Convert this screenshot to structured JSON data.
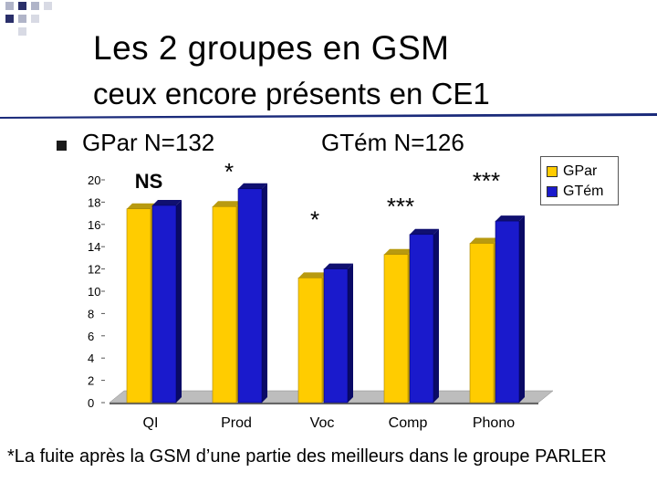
{
  "slide": {
    "title": "Les 2 groupes en GSM",
    "subtitle": "ceux encore présents en CE1",
    "group1": "GPar N=132",
    "group2": "GTém N=126",
    "footnote": "*La fuite après la GSM d’une partie des meilleurs dans le groupe PARLER"
  },
  "colors": {
    "gpar": "#FFCC00",
    "gtem": "#1a1acc",
    "rule": "#1a2a7a"
  },
  "chart_data": {
    "type": "bar",
    "categories": [
      "QI",
      "Prod",
      "Voc",
      "Comp",
      "Phono"
    ],
    "series": [
      {
        "name": "GPar",
        "values": [
          17.4,
          17.6,
          11.2,
          13.3,
          14.3
        ]
      },
      {
        "name": "GTém",
        "values": [
          17.7,
          19.2,
          12.0,
          15.1,
          16.3
        ]
      }
    ],
    "ylim": [
      0,
      20
    ],
    "yticks": [
      "0",
      "2",
      "4",
      "6",
      "8",
      "10",
      "12",
      "14",
      "16",
      "18",
      "20"
    ],
    "significance": [
      "NS",
      "*",
      "*",
      "***",
      "***"
    ],
    "legend": "top-right",
    "grid": false
  }
}
